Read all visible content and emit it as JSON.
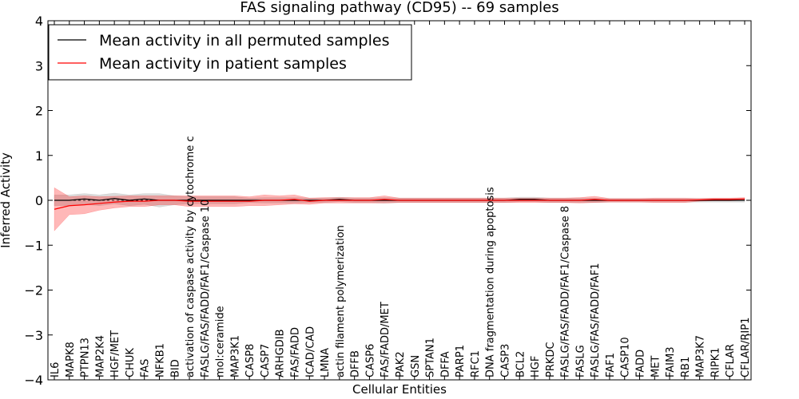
{
  "chart_data": {
    "type": "line",
    "title": "FAS signaling pathway (CD95) -- 69 samples",
    "xlabel": "Cellular Entities",
    "ylabel": "Inferred Activity",
    "ylim": [
      -4,
      4
    ],
    "yticks": [
      -4,
      -3,
      -2,
      -1,
      0,
      1,
      2,
      3,
      4
    ],
    "ytick_labels": [
      "−4",
      "−3",
      "−2",
      "−1",
      "0",
      "1",
      "2",
      "3",
      "4"
    ],
    "legend_position": "top-left",
    "categories": [
      "IL6",
      "MAPK8",
      "PTPN13",
      "MAP2K4",
      "HGF/MET",
      "CHUK",
      "FAS",
      "NFKB1",
      "BID",
      "activation of caspase activity by cytochrome c",
      "FASLG/FAS/FADD/FAF1/Caspase 10",
      "mol:ceramide",
      "MAP3K1",
      "CASP8",
      "CASP7",
      "ARHGDIB",
      "FAS/FADD",
      "ICAD/CAD",
      "LMNA",
      "actin filament polymerization",
      "DFFB",
      "CASP6",
      "FAS/FADD/MET",
      "PAK2",
      "GSN",
      "SPTAN1",
      "DFFA",
      "PARP1",
      "RFC1",
      "DNA fragmentation during apoptosis",
      "CASP3",
      "BCL2",
      "HGF",
      "PRKDC",
      "FASLG/FAS/FADD/FAF1/Caspase 8",
      "FASLG",
      "FASLG/FAS/FADD/FAF1",
      "FAF1",
      "CASP10",
      "FADD",
      "MET",
      "FAIM3",
      "RB1",
      "MAP3K7",
      "RIPK1",
      "CFLAR",
      "CFLAR/RIP1"
    ],
    "series": [
      {
        "name": "Mean activity in all permuted samples",
        "color": "#000000",
        "values": [
          0.0,
          0.0,
          0.03,
          0.0,
          0.04,
          0.0,
          0.03,
          0.0,
          0.0,
          0.0,
          0.0,
          0.0,
          0.0,
          0.0,
          0.0,
          0.0,
          0.0,
          0.0,
          0.0,
          0.02,
          0.0,
          0.0,
          0.0,
          0.0,
          0.0,
          0.0,
          0.0,
          0.0,
          0.0,
          0.0,
          0.0,
          0.02,
          0.02,
          0.0,
          0.0,
          0.0,
          0.0,
          0.0,
          0.0,
          0.0,
          0.0,
          0.0,
          0.0,
          0.0,
          0.0,
          0.0,
          0.0
        ],
        "band": [
          0.12,
          0.12,
          0.12,
          0.12,
          0.12,
          0.12,
          0.12,
          0.15,
          0.1,
          0.08,
          0.08,
          0.08,
          0.08,
          0.05,
          0.06,
          0.06,
          0.06,
          0.05,
          0.05,
          0.05,
          0.05,
          0.05,
          0.06,
          0.05,
          0.05,
          0.05,
          0.05,
          0.05,
          0.05,
          0.05,
          0.05,
          0.05,
          0.05,
          0.05,
          0.05,
          0.05,
          0.05,
          0.04,
          0.04,
          0.04,
          0.04,
          0.04,
          0.04,
          0.04,
          0.04,
          0.04,
          0.04
        ]
      },
      {
        "name": "Mean activity in patient samples",
        "color": "#ff0000",
        "values": [
          -0.2,
          -0.12,
          -0.1,
          -0.07,
          -0.04,
          -0.02,
          -0.02,
          0.0,
          0.0,
          -0.02,
          -0.02,
          -0.02,
          -0.02,
          -0.02,
          0.0,
          0.0,
          0.02,
          -0.02,
          0.0,
          0.0,
          0.0,
          0.0,
          0.02,
          0.0,
          0.0,
          0.0,
          0.0,
          0.0,
          0.0,
          0.0,
          0.0,
          0.0,
          0.0,
          0.0,
          0.0,
          0.0,
          0.02,
          0.0,
          0.0,
          0.0,
          0.0,
          0.0,
          0.0,
          0.01,
          0.02,
          0.02,
          0.03
        ],
        "band": [
          0.48,
          0.2,
          0.2,
          0.15,
          0.13,
          0.12,
          0.12,
          0.1,
          0.1,
          0.12,
          0.12,
          0.12,
          0.12,
          0.1,
          0.12,
          0.1,
          0.1,
          0.07,
          0.06,
          0.06,
          0.06,
          0.06,
          0.08,
          0.05,
          0.05,
          0.05,
          0.05,
          0.05,
          0.05,
          0.05,
          0.05,
          0.05,
          0.05,
          0.05,
          0.05,
          0.06,
          0.07,
          0.04,
          0.04,
          0.04,
          0.05,
          0.05,
          0.05,
          0.03,
          0.03,
          0.03,
          0.03
        ]
      }
    ]
  }
}
